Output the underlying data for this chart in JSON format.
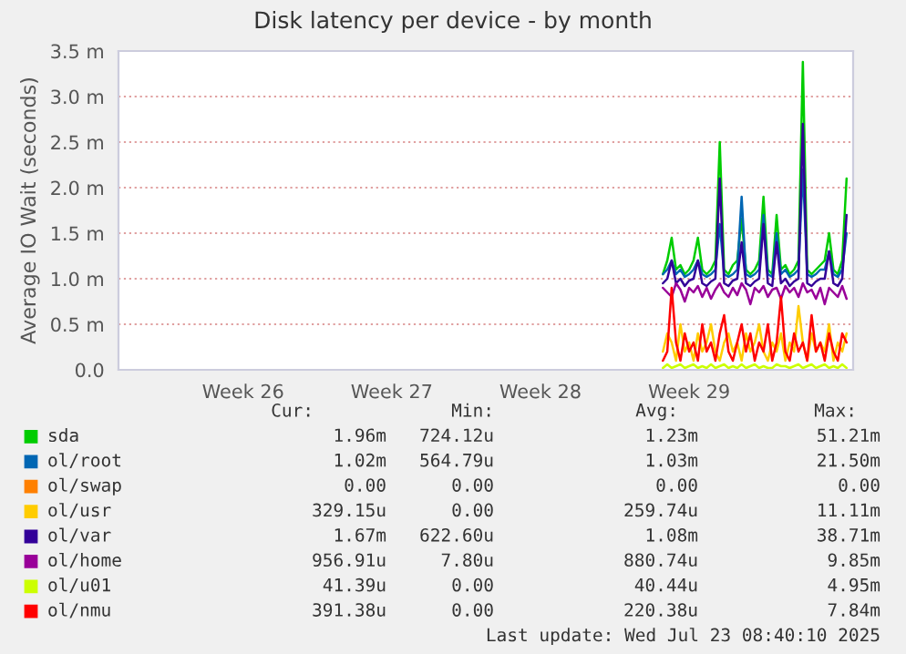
{
  "chart_data": {
    "type": "line",
    "title": "Disk latency per device - by month",
    "ylabel": "Average IO Wait (seconds)",
    "categories": [
      null,
      null,
      null,
      null,
      null,
      null,
      null,
      null,
      null,
      null,
      null,
      null,
      null,
      null,
      null,
      null,
      null,
      null,
      null,
      null,
      null,
      null,
      null,
      null,
      null,
      null,
      null,
      null,
      "Week 26",
      null,
      null,
      null,
      null,
      null,
      null,
      null,
      null,
      null,
      null,
      null,
      null,
      null,
      null,
      null,
      null,
      null,
      null,
      null,
      null,
      null,
      null,
      null,
      null,
      null,
      null,
      null,
      null,
      null,
      null,
      null,
      null,
      null,
      "Week 27",
      null,
      null,
      null,
      null,
      null,
      null,
      null,
      null,
      null,
      null,
      null,
      null,
      null,
      null,
      null,
      null,
      null,
      null,
      null,
      null,
      null,
      null,
      null,
      null,
      null,
      null,
      null,
      null,
      null,
      null,
      null,
      null,
      null,
      "Week 28",
      null,
      null,
      null,
      null,
      null,
      null,
      null,
      null,
      null,
      null,
      null,
      null,
      null,
      null,
      null,
      null,
      null,
      null,
      null,
      null,
      null,
      null,
      null,
      null,
      null,
      null,
      null,
      null,
      null,
      null,
      null,
      null,
      null,
      "Week 29",
      null,
      null,
      null,
      null,
      null,
      null,
      null,
      null,
      null,
      null,
      null,
      null,
      null,
      null,
      null,
      null,
      null,
      null,
      null,
      null,
      null,
      null,
      null,
      null,
      null,
      null,
      null,
      null,
      null,
      null,
      null,
      null,
      null,
      null,
      null,
      null,
      null
    ],
    "ylim": [
      0,
      3.5
    ],
    "yticks": [
      {
        "value": 0,
        "label": "0.0"
      },
      {
        "value": 0.5,
        "label": "0.5 m"
      },
      {
        "value": 1.0,
        "label": "1.0 m"
      },
      {
        "value": 1.5,
        "label": "1.5 m"
      },
      {
        "value": 2.0,
        "label": "2.0 m"
      },
      {
        "value": 2.5,
        "label": "2.5 m"
      },
      {
        "value": 3.0,
        "label": "3.0 m"
      },
      {
        "value": 3.5,
        "label": "3.5 m"
      }
    ],
    "grid": "y",
    "legend": "bottom",
    "series": [
      {
        "name": "sda",
        "color": "#00cc00",
        "values": [
          null,
          null,
          null,
          null,
          null,
          null,
          null,
          null,
          null,
          null,
          null,
          null,
          null,
          null,
          null,
          null,
          null,
          null,
          null,
          null,
          null,
          null,
          null,
          null,
          null,
          null,
          null,
          null,
          null,
          null,
          null,
          null,
          null,
          null,
          null,
          null,
          null,
          null,
          null,
          null,
          null,
          null,
          null,
          null,
          null,
          null,
          null,
          null,
          null,
          null,
          null,
          null,
          null,
          null,
          null,
          null,
          null,
          null,
          null,
          null,
          null,
          null,
          null,
          null,
          null,
          null,
          null,
          null,
          null,
          null,
          null,
          null,
          null,
          null,
          null,
          null,
          null,
          null,
          null,
          null,
          null,
          null,
          null,
          null,
          null,
          null,
          null,
          null,
          null,
          null,
          null,
          null,
          null,
          null,
          null,
          null,
          null,
          null,
          null,
          null,
          null,
          null,
          null,
          null,
          null,
          null,
          null,
          null,
          null,
          null,
          null,
          null,
          null,
          null,
          null,
          null,
          null,
          null,
          null,
          null,
          null,
          null,
          null,
          null,
          1.05,
          1.2,
          1.45,
          1.1,
          1.15,
          1.05,
          1.1,
          1.2,
          1.45,
          1.1,
          1.05,
          1.1,
          1.2,
          2.5,
          1.1,
          1.05,
          1.15,
          1.2,
          1.66,
          1.1,
          1.05,
          1.1,
          1.2,
          1.9,
          1.1,
          1.05,
          1.7,
          1.1,
          1.15,
          1.05,
          1.1,
          1.2,
          3.38,
          1.1,
          1.05,
          1.1,
          1.15,
          1.2,
          1.5,
          1.1,
          1.05,
          1.2,
          2.1,
          null
        ]
      },
      {
        "name": "ol/root",
        "color": "#0066b3",
        "values": [
          null,
          null,
          null,
          null,
          null,
          null,
          null,
          null,
          null,
          null,
          null,
          null,
          null,
          null,
          null,
          null,
          null,
          null,
          null,
          null,
          null,
          null,
          null,
          null,
          null,
          null,
          null,
          null,
          null,
          null,
          null,
          null,
          null,
          null,
          null,
          null,
          null,
          null,
          null,
          null,
          null,
          null,
          null,
          null,
          null,
          null,
          null,
          null,
          null,
          null,
          null,
          null,
          null,
          null,
          null,
          null,
          null,
          null,
          null,
          null,
          null,
          null,
          null,
          null,
          null,
          null,
          null,
          null,
          null,
          null,
          null,
          null,
          null,
          null,
          null,
          null,
          null,
          null,
          null,
          null,
          null,
          null,
          null,
          null,
          null,
          null,
          null,
          null,
          null,
          null,
          null,
          null,
          null,
          null,
          null,
          null,
          null,
          null,
          null,
          null,
          null,
          null,
          null,
          null,
          null,
          null,
          null,
          null,
          null,
          null,
          null,
          null,
          null,
          null,
          null,
          null,
          null,
          null,
          null,
          null,
          null,
          null,
          null,
          null,
          1.05,
          1.1,
          1.2,
          1.05,
          1.1,
          1.02,
          1.05,
          1.1,
          1.2,
          1.05,
          1.02,
          1.05,
          1.1,
          1.6,
          1.05,
          1.02,
          1.05,
          1.1,
          1.9,
          1.05,
          1.02,
          1.05,
          1.1,
          1.7,
          1.05,
          1.02,
          1.5,
          1.05,
          1.1,
          1.02,
          1.05,
          1.1,
          2.2,
          1.05,
          1.02,
          1.05,
          1.1,
          1.1,
          1.3,
          1.05,
          1.02,
          1.1,
          1.5,
          null
        ]
      },
      {
        "name": "ol/swap",
        "color": "#ff8000",
        "values": [
          null,
          null,
          null,
          null,
          null,
          null,
          null,
          null,
          null,
          null,
          null,
          null,
          null,
          null,
          null,
          null,
          null,
          null,
          null,
          null,
          null,
          null,
          null,
          null,
          null,
          null,
          null,
          null,
          null,
          null,
          null,
          null,
          null,
          null,
          null,
          null,
          null,
          null,
          null,
          null,
          null,
          null,
          null,
          null,
          null,
          null,
          null,
          null,
          null,
          null,
          null,
          null,
          null,
          null,
          null,
          null,
          null,
          null,
          null,
          null,
          null,
          null,
          null,
          null,
          null,
          null,
          null,
          null,
          null,
          null,
          null,
          null,
          null,
          null,
          null,
          null,
          null,
          null,
          null,
          null,
          null,
          null,
          null,
          null,
          null,
          null,
          null,
          null,
          null,
          null,
          null,
          null,
          null,
          null,
          null,
          null,
          null,
          null,
          null,
          null,
          null,
          null,
          null,
          null,
          null,
          null,
          null,
          null,
          null,
          null,
          null,
          null,
          null,
          null,
          null,
          null,
          null,
          null,
          null,
          null,
          null,
          null,
          null,
          null,
          null,
          null,
          null,
          null,
          null,
          null,
          null,
          null,
          null,
          null,
          null,
          null,
          null,
          null,
          null,
          null,
          null,
          null,
          null,
          null,
          null,
          null,
          null,
          null,
          null,
          null,
          null,
          null,
          null,
          null,
          null,
          null,
          null,
          null,
          null,
          null,
          null,
          null,
          null,
          null,
          null,
          null,
          null,
          null
        ]
      },
      {
        "name": "ol/usr",
        "color": "#ffcc00",
        "values": [
          null,
          null,
          null,
          null,
          null,
          null,
          null,
          null,
          null,
          null,
          null,
          null,
          null,
          null,
          null,
          null,
          null,
          null,
          null,
          null,
          null,
          null,
          null,
          null,
          null,
          null,
          null,
          null,
          null,
          null,
          null,
          null,
          null,
          null,
          null,
          null,
          null,
          null,
          null,
          null,
          null,
          null,
          null,
          null,
          null,
          null,
          null,
          null,
          null,
          null,
          null,
          null,
          null,
          null,
          null,
          null,
          null,
          null,
          null,
          null,
          null,
          null,
          null,
          null,
          null,
          null,
          null,
          null,
          null,
          null,
          null,
          null,
          null,
          null,
          null,
          null,
          null,
          null,
          null,
          null,
          null,
          null,
          null,
          null,
          null,
          null,
          null,
          null,
          null,
          null,
          null,
          null,
          null,
          null,
          null,
          null,
          null,
          null,
          null,
          null,
          null,
          null,
          null,
          null,
          null,
          null,
          null,
          null,
          null,
          null,
          null,
          null,
          null,
          null,
          null,
          null,
          null,
          null,
          null,
          null,
          null,
          null,
          null,
          null,
          0.2,
          0.4,
          0.3,
          0.1,
          0.5,
          0.2,
          0.3,
          0.1,
          0.4,
          0.2,
          0.3,
          0.5,
          0.2,
          0.1,
          0.3,
          0.4,
          0.2,
          0.3,
          0.1,
          0.4,
          0.2,
          0.3,
          0.5,
          0.2,
          0.1,
          0.3,
          0.2,
          0.4,
          0.1,
          0.3,
          0.2,
          0.7,
          0.3,
          0.1,
          0.4,
          0.2,
          0.3,
          0.2,
          0.5,
          0.1,
          0.3,
          0.2,
          0.4,
          null
        ]
      },
      {
        "name": "ol/var",
        "color": "#330099",
        "values": [
          null,
          null,
          null,
          null,
          null,
          null,
          null,
          null,
          null,
          null,
          null,
          null,
          null,
          null,
          null,
          null,
          null,
          null,
          null,
          null,
          null,
          null,
          null,
          null,
          null,
          null,
          null,
          null,
          null,
          null,
          null,
          null,
          null,
          null,
          null,
          null,
          null,
          null,
          null,
          null,
          null,
          null,
          null,
          null,
          null,
          null,
          null,
          null,
          null,
          null,
          null,
          null,
          null,
          null,
          null,
          null,
          null,
          null,
          null,
          null,
          null,
          null,
          null,
          null,
          null,
          null,
          null,
          null,
          null,
          null,
          null,
          null,
          null,
          null,
          null,
          null,
          null,
          null,
          null,
          null,
          null,
          null,
          null,
          null,
          null,
          null,
          null,
          null,
          null,
          null,
          null,
          null,
          null,
          null,
          null,
          null,
          null,
          null,
          null,
          null,
          null,
          null,
          null,
          null,
          null,
          null,
          null,
          null,
          null,
          null,
          null,
          null,
          null,
          null,
          null,
          null,
          null,
          null,
          null,
          null,
          null,
          null,
          null,
          null,
          0.95,
          1.0,
          1.2,
          0.95,
          1.0,
          0.92,
          0.98,
          1.0,
          1.2,
          0.95,
          0.92,
          0.97,
          1.0,
          2.1,
          0.95,
          0.92,
          0.98,
          1.0,
          1.4,
          0.95,
          0.92,
          0.97,
          1.0,
          1.6,
          0.95,
          0.92,
          1.4,
          0.95,
          1.0,
          0.92,
          0.97,
          1.0,
          2.7,
          0.95,
          0.92,
          0.97,
          1.0,
          1.0,
          1.3,
          0.95,
          0.92,
          1.0,
          1.7,
          null
        ]
      },
      {
        "name": "ol/home",
        "color": "#990099",
        "values": [
          null,
          null,
          null,
          null,
          null,
          null,
          null,
          null,
          null,
          null,
          null,
          null,
          null,
          null,
          null,
          null,
          null,
          null,
          null,
          null,
          null,
          null,
          null,
          null,
          null,
          null,
          null,
          null,
          null,
          null,
          null,
          null,
          null,
          null,
          null,
          null,
          null,
          null,
          null,
          null,
          null,
          null,
          null,
          null,
          null,
          null,
          null,
          null,
          null,
          null,
          null,
          null,
          null,
          null,
          null,
          null,
          null,
          null,
          null,
          null,
          null,
          null,
          null,
          null,
          null,
          null,
          null,
          null,
          null,
          null,
          null,
          null,
          null,
          null,
          null,
          null,
          null,
          null,
          null,
          null,
          null,
          null,
          null,
          null,
          null,
          null,
          null,
          null,
          null,
          null,
          null,
          null,
          null,
          null,
          null,
          null,
          null,
          null,
          null,
          null,
          null,
          null,
          null,
          null,
          null,
          null,
          null,
          null,
          null,
          null,
          null,
          null,
          null,
          null,
          null,
          null,
          null,
          null,
          null,
          null,
          null,
          null,
          null,
          null,
          0.9,
          0.85,
          0.8,
          0.95,
          0.88,
          0.75,
          0.9,
          0.85,
          0.92,
          0.8,
          0.9,
          0.78,
          0.88,
          0.95,
          0.85,
          0.8,
          0.9,
          0.82,
          0.95,
          0.88,
          0.72,
          0.9,
          0.85,
          0.92,
          0.8,
          0.88,
          0.9,
          0.78,
          0.92,
          0.85,
          0.9,
          0.8,
          0.95,
          0.85,
          0.88,
          0.78,
          0.9,
          0.72,
          0.9,
          0.85,
          0.8,
          0.92,
          0.78,
          null
        ]
      },
      {
        "name": "ol/u01",
        "color": "#ccff00",
        "values": [
          null,
          null,
          null,
          null,
          null,
          null,
          null,
          null,
          null,
          null,
          null,
          null,
          null,
          null,
          null,
          null,
          null,
          null,
          null,
          null,
          null,
          null,
          null,
          null,
          null,
          null,
          null,
          null,
          null,
          null,
          null,
          null,
          null,
          null,
          null,
          null,
          null,
          null,
          null,
          null,
          null,
          null,
          null,
          null,
          null,
          null,
          null,
          null,
          null,
          null,
          null,
          null,
          null,
          null,
          null,
          null,
          null,
          null,
          null,
          null,
          null,
          null,
          null,
          null,
          null,
          null,
          null,
          null,
          null,
          null,
          null,
          null,
          null,
          null,
          null,
          null,
          null,
          null,
          null,
          null,
          null,
          null,
          null,
          null,
          null,
          null,
          null,
          null,
          null,
          null,
          null,
          null,
          null,
          null,
          null,
          null,
          null,
          null,
          null,
          null,
          null,
          null,
          null,
          null,
          null,
          null,
          null,
          null,
          null,
          null,
          null,
          null,
          null,
          null,
          null,
          null,
          null,
          null,
          null,
          null,
          null,
          null,
          null,
          null,
          0.02,
          0.06,
          0.02,
          0.04,
          0.06,
          0.02,
          0.04,
          0.06,
          0.02,
          0.04,
          0.02,
          0.06,
          0.02,
          0.04,
          0.06,
          0.02,
          0.04,
          0.02,
          0.06,
          0.02,
          0.04,
          0.06,
          0.02,
          0.04,
          0.02,
          0.02,
          0.06,
          0.04,
          0.04,
          0.02,
          0.04,
          0.06,
          0.02,
          0.04,
          0.06,
          0.02,
          0.04,
          0.06,
          0.02,
          0.04,
          0.02,
          0.06,
          0.02,
          null
        ]
      },
      {
        "name": "ol/nmu",
        "color": "#ff0000",
        "values": [
          null,
          null,
          null,
          null,
          null,
          null,
          null,
          null,
          null,
          null,
          null,
          null,
          null,
          null,
          null,
          null,
          null,
          null,
          null,
          null,
          null,
          null,
          null,
          null,
          null,
          null,
          null,
          null,
          null,
          null,
          null,
          null,
          null,
          null,
          null,
          null,
          null,
          null,
          null,
          null,
          null,
          null,
          null,
          null,
          null,
          null,
          null,
          null,
          null,
          null,
          null,
          null,
          null,
          null,
          null,
          null,
          null,
          null,
          null,
          null,
          null,
          null,
          null,
          null,
          null,
          null,
          null,
          null,
          null,
          null,
          null,
          null,
          null,
          null,
          null,
          null,
          null,
          null,
          null,
          null,
          null,
          null,
          null,
          null,
          null,
          null,
          null,
          null,
          null,
          null,
          null,
          null,
          null,
          null,
          null,
          null,
          null,
          null,
          null,
          null,
          null,
          null,
          null,
          null,
          null,
          null,
          null,
          null,
          null,
          null,
          null,
          null,
          null,
          null,
          null,
          null,
          null,
          null,
          null,
          null,
          null,
          null,
          null,
          null,
          0.1,
          0.2,
          0.9,
          0.3,
          0.1,
          0.4,
          0.2,
          0.3,
          0.1,
          0.5,
          0.2,
          0.3,
          0.1,
          0.4,
          0.6,
          0.2,
          0.1,
          0.3,
          0.5,
          0.2,
          0.4,
          0.1,
          0.3,
          0.2,
          0.5,
          0.1,
          0.3,
          0.8,
          0.2,
          0.1,
          0.4,
          0.2,
          0.3,
          0.1,
          0.6,
          0.2,
          0.3,
          0.1,
          0.4,
          0.2,
          0.1,
          0.4,
          0.3,
          null
        ]
      }
    ],
    "annotations": [
      "Cur:",
      "Min:",
      "Avg:",
      "Max:",
      "1.96m",
      "724.12u",
      "1.23m",
      "51.21m",
      "1.02m",
      "564.79u",
      "1.03m",
      "21.50m",
      "0.00",
      "0.00",
      "0.00",
      "0.00",
      "329.15u",
      "0.00",
      "259.74u",
      "11.11m",
      "1.67m",
      "622.60u",
      "1.08m",
      "38.71m",
      "956.91u",
      "7.80u",
      "880.74u",
      "9.85m",
      "41.39u",
      "0.00",
      "40.44u",
      "4.95m",
      "391.38u",
      "0.00",
      "220.38u",
      "7.84m",
      "Last update: Wed Jul 23 08:40:10 2025"
    ]
  }
}
